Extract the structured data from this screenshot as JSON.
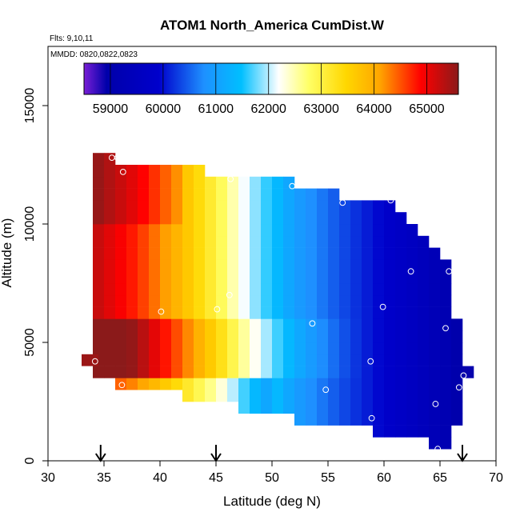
{
  "chart_data": {
    "type": "heatmap",
    "title": "ATOM1 North_America CumDist.W",
    "annotation_flights": "Flts: 9,10,11",
    "annotation_dates": "MMDD: 0820,0822,0823",
    "xlabel": "Latitude (deg N)",
    "ylabel": "Altitude (m)",
    "xlim": [
      30,
      70
    ],
    "ylim": [
      0,
      17500
    ],
    "x_ticks": [
      30,
      35,
      40,
      45,
      50,
      55,
      60,
      65,
      70
    ],
    "x_tick_labels": [
      "30",
      "35",
      "40",
      "45",
      "50",
      "55",
      "60",
      "65",
      "70"
    ],
    "y_ticks": [
      0,
      5000,
      10000,
      15000
    ],
    "y_tick_labels": [
      "0",
      "5000",
      "10000",
      "15000"
    ],
    "colorbar": {
      "min": 58500,
      "max": 65600,
      "ticks": [
        59000,
        60000,
        61000,
        62000,
        63000,
        64000,
        65000
      ],
      "tick_labels": [
        "59000",
        "60000",
        "61000",
        "62000",
        "63000",
        "64000",
        "65000"
      ]
    },
    "colors": [
      "#7a1fd6",
      "#0000aa",
      "#0000cc",
      "#1e90ff",
      "#00bfff",
      "#ffffff",
      "#ffff66",
      "#ffd700",
      "#ffa500",
      "#ff0000",
      "#8b1a1a"
    ],
    "grid": false,
    "cell_lat_width": 1,
    "cell_alt_height": 500,
    "columns": [
      {
        "lat": 34.5,
        "alt_min": 3500,
        "alt_max": 13000
      },
      {
        "lat": 35.5,
        "alt_min": 3500,
        "alt_max": 13000
      },
      {
        "lat": 36.5,
        "alt_min": 3000,
        "alt_max": 12500
      },
      {
        "lat": 37.5,
        "alt_min": 3000,
        "alt_max": 12500
      },
      {
        "lat": 38.5,
        "alt_min": 3000,
        "alt_max": 12500
      },
      {
        "lat": 39.5,
        "alt_min": 3000,
        "alt_max": 12500
      },
      {
        "lat": 40.5,
        "alt_min": 3000,
        "alt_max": 12500
      },
      {
        "lat": 41.5,
        "alt_min": 3000,
        "alt_max": 12500
      },
      {
        "lat": 42.5,
        "alt_min": 2500,
        "alt_max": 12500
      },
      {
        "lat": 43.5,
        "alt_min": 2500,
        "alt_max": 12500
      },
      {
        "lat": 44.5,
        "alt_min": 2500,
        "alt_max": 12000
      },
      {
        "lat": 45.5,
        "alt_min": 2500,
        "alt_max": 12000
      },
      {
        "lat": 46.5,
        "alt_min": 2500,
        "alt_max": 12000
      },
      {
        "lat": 47.5,
        "alt_min": 2000,
        "alt_max": 12000
      },
      {
        "lat": 48.5,
        "alt_min": 2000,
        "alt_max": 12000
      },
      {
        "lat": 49.5,
        "alt_min": 2000,
        "alt_max": 12000
      },
      {
        "lat": 50.5,
        "alt_min": 2000,
        "alt_max": 12000
      },
      {
        "lat": 51.5,
        "alt_min": 2000,
        "alt_max": 12000
      },
      {
        "lat": 52.5,
        "alt_min": 1500,
        "alt_max": 11500
      },
      {
        "lat": 53.5,
        "alt_min": 1500,
        "alt_max": 11500
      },
      {
        "lat": 54.5,
        "alt_min": 1500,
        "alt_max": 11500
      },
      {
        "lat": 55.5,
        "alt_min": 1500,
        "alt_max": 11500
      },
      {
        "lat": 56.5,
        "alt_min": 1500,
        "alt_max": 11000
      },
      {
        "lat": 57.5,
        "alt_min": 1500,
        "alt_max": 11000
      },
      {
        "lat": 58.5,
        "alt_min": 1500,
        "alt_max": 11000
      },
      {
        "lat": 59.5,
        "alt_min": 1000,
        "alt_max": 11000
      },
      {
        "lat": 60.5,
        "alt_min": 1000,
        "alt_max": 11000
      },
      {
        "lat": 61.5,
        "alt_min": 1000,
        "alt_max": 10500
      },
      {
        "lat": 62.5,
        "alt_min": 1000,
        "alt_max": 10000
      },
      {
        "lat": 63.5,
        "alt_min": 1000,
        "alt_max": 9500
      },
      {
        "lat": 64.5,
        "alt_min": 500,
        "alt_max": 9000
      },
      {
        "lat": 65.5,
        "alt_min": 500,
        "alt_max": 8500
      },
      {
        "lat": 66.5,
        "alt_min": 1500,
        "alt_max": 6000
      },
      {
        "lat": 67.5,
        "alt_min": 3500,
        "alt_max": 4000
      }
    ],
    "extra_cells": [
      {
        "lat": 33.75,
        "alt_min": 4000,
        "alt_max": 4500,
        "value": 65500
      }
    ],
    "value_model": "approximate: ~65000 near 35N, ~63000 at 45N, ~61000 at 52N, ~59500 at 64N; lower-altitude band 4000-6000 m warmer toward the south",
    "points": [
      {
        "lat": 35.7,
        "alt": 12800
      },
      {
        "lat": 36.2,
        "alt": 12800
      },
      {
        "lat": 36.7,
        "alt": 12200
      },
      {
        "lat": 46.3,
        "alt": 11900
      },
      {
        "lat": 51.8,
        "alt": 11600
      },
      {
        "lat": 56.3,
        "alt": 10900
      },
      {
        "lat": 60.6,
        "alt": 11000
      },
      {
        "lat": 62.4,
        "alt": 8000
      },
      {
        "lat": 65.8,
        "alt": 8000
      },
      {
        "lat": 59.9,
        "alt": 6500
      },
      {
        "lat": 46.2,
        "alt": 7000
      },
      {
        "lat": 40.1,
        "alt": 6300
      },
      {
        "lat": 45.1,
        "alt": 6400
      },
      {
        "lat": 53.6,
        "alt": 5800
      },
      {
        "lat": 65.5,
        "alt": 5600
      },
      {
        "lat": 34.2,
        "alt": 4200
      },
      {
        "lat": 58.8,
        "alt": 4200
      },
      {
        "lat": 67.1,
        "alt": 3600
      },
      {
        "lat": 36.6,
        "alt": 3200
      },
      {
        "lat": 54.8,
        "alt": 3000
      },
      {
        "lat": 66.7,
        "alt": 3100
      },
      {
        "lat": 64.6,
        "alt": 2400
      },
      {
        "lat": 58.9,
        "alt": 1800
      },
      {
        "lat": 64.8,
        "alt": 500
      }
    ],
    "arrows_lat": [
      34.7,
      45,
      67
    ]
  }
}
